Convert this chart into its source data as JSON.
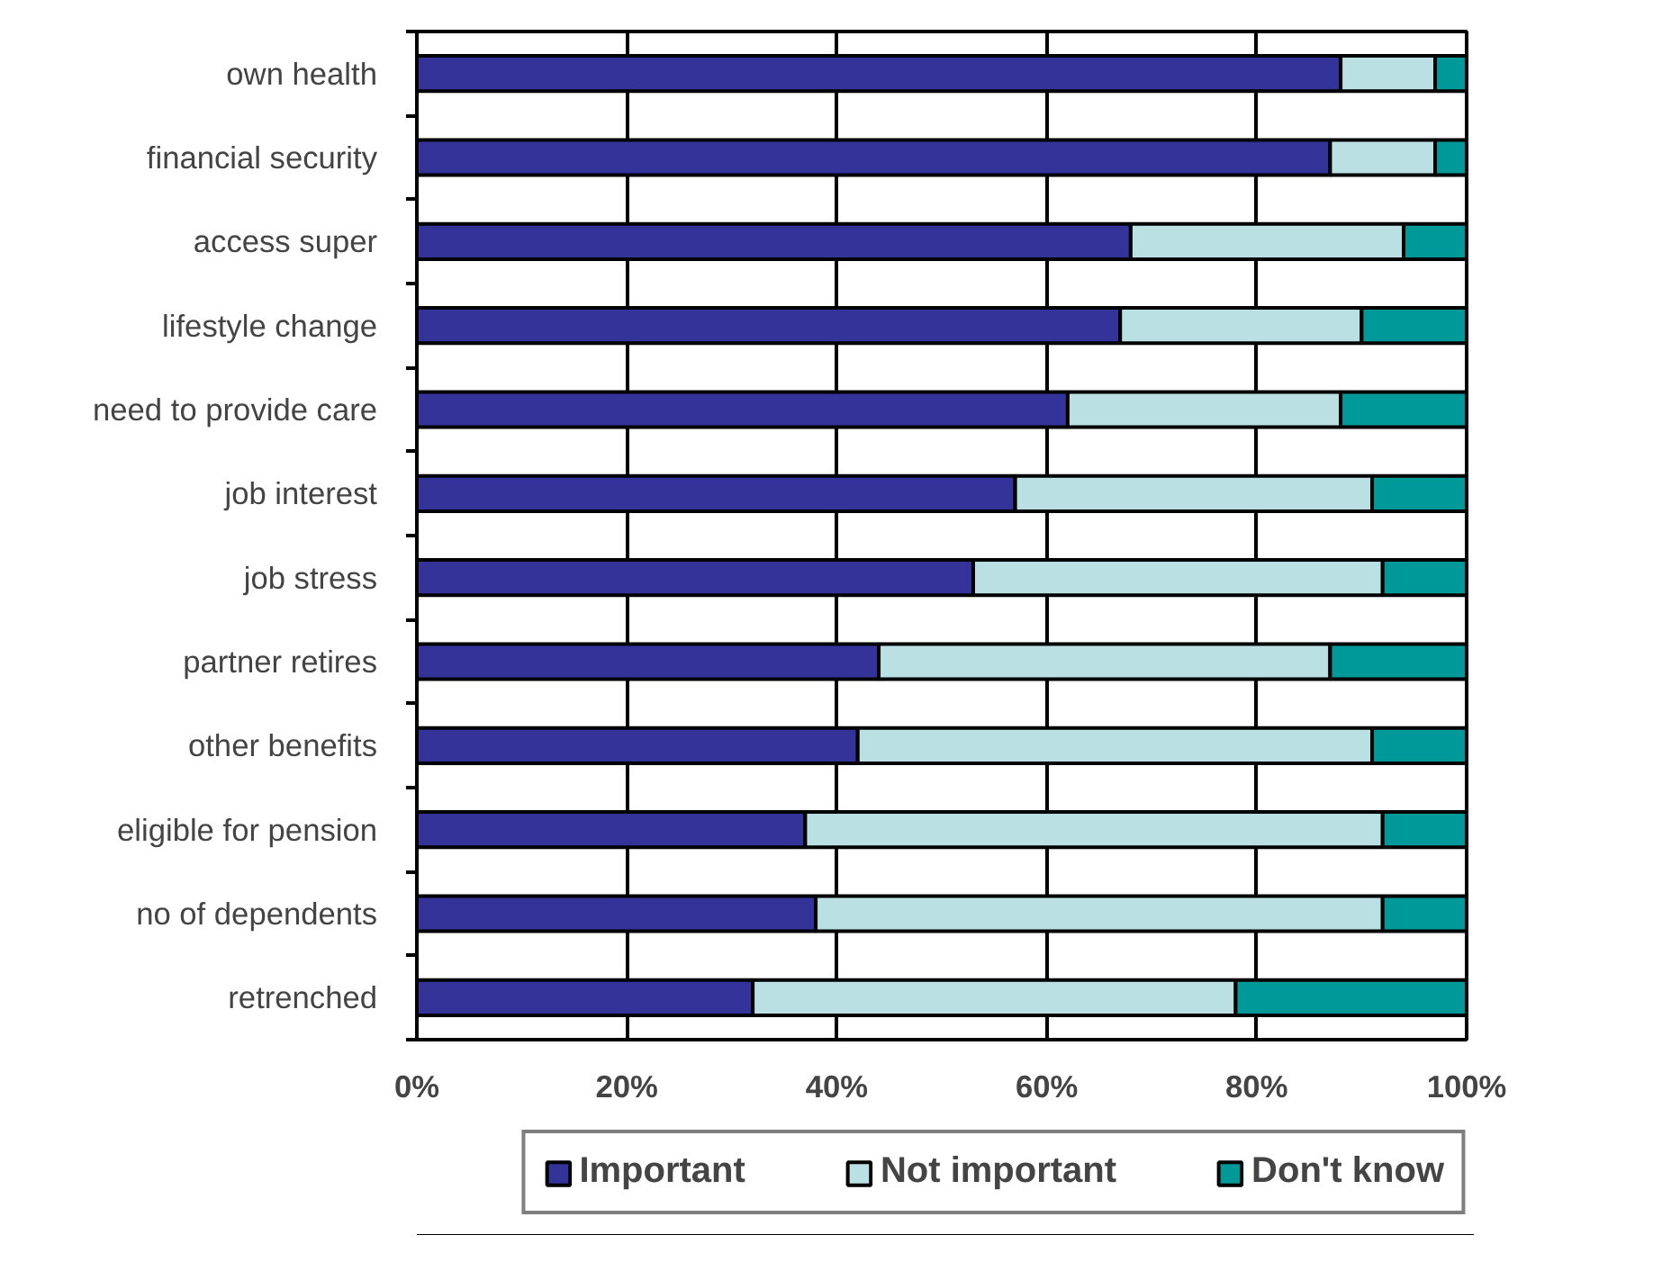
{
  "chart_data": {
    "type": "bar",
    "orientation": "horizontal",
    "stacked": true,
    "categories": [
      "own health",
      "financial security",
      "access super",
      "lifestyle change",
      "need to provide care",
      "job interest",
      "job stress",
      "partner retires",
      "other benefits",
      "eligible for pension",
      "no of dependents",
      "retrenched"
    ],
    "series": [
      {
        "name": "Important",
        "color": "#333399",
        "values": [
          88,
          87,
          68,
          67,
          62,
          57,
          53,
          44,
          42,
          37,
          38,
          32
        ]
      },
      {
        "name": "Not important",
        "color": "#bbe0e3",
        "values": [
          9,
          10,
          26,
          23,
          26,
          34,
          39,
          43,
          49,
          55,
          54,
          46
        ]
      },
      {
        "name": "Don't know",
        "color": "#009999",
        "values": [
          3,
          3,
          6,
          10,
          12,
          9,
          8,
          13,
          9,
          8,
          8,
          22
        ]
      }
    ],
    "xlim": [
      0,
      100
    ],
    "xticks": [
      {
        "value": 0,
        "label": "0%"
      },
      {
        "value": 20,
        "label": "20%"
      },
      {
        "value": 40,
        "label": "40%"
      },
      {
        "value": 60,
        "label": "60%"
      },
      {
        "value": 80,
        "label": "80%"
      },
      {
        "value": 100,
        "label": "100%"
      }
    ],
    "grid": "x",
    "legend": "bottom"
  }
}
